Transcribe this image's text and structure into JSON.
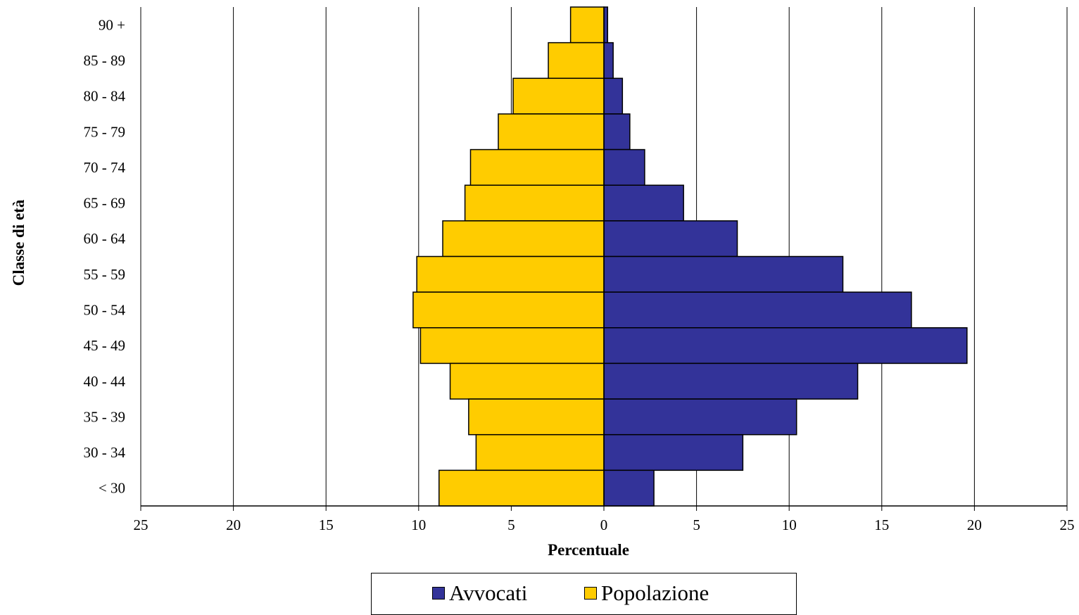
{
  "chart_data": {
    "type": "bar",
    "orientation": "horizontal-population-pyramid",
    "title": "",
    "xlabel": "Percentuale",
    "ylabel": "Classe di età",
    "xlim": [
      -25,
      25
    ],
    "x_ticks": [
      "25",
      "20",
      "15",
      "10",
      "5",
      "0",
      "5",
      "10",
      "15",
      "20",
      "25"
    ],
    "grid": "vertical",
    "legend_position": "bottom",
    "categories": [
      "90 +",
      "85 - 89",
      "80 - 84",
      "75 - 79",
      "70 - 74",
      "65 - 69",
      "60 - 64",
      "55 - 59",
      "50 - 54",
      "45 - 49",
      "40 - 44",
      "35 - 39",
      "30 - 34",
      "< 30"
    ],
    "series": [
      {
        "name": "Avvocati",
        "color": "#333399",
        "side": "right",
        "values": [
          0.2,
          0.5,
          1.0,
          1.4,
          2.2,
          4.3,
          7.2,
          12.9,
          16.6,
          19.6,
          13.7,
          10.4,
          7.5,
          2.7
        ]
      },
      {
        "name": "Popolazione",
        "color": "#FFCC00",
        "side": "left",
        "values": [
          1.8,
          3.0,
          4.9,
          5.7,
          7.2,
          7.5,
          8.7,
          10.1,
          10.3,
          9.9,
          8.3,
          7.3,
          6.9,
          8.9
        ]
      }
    ]
  }
}
